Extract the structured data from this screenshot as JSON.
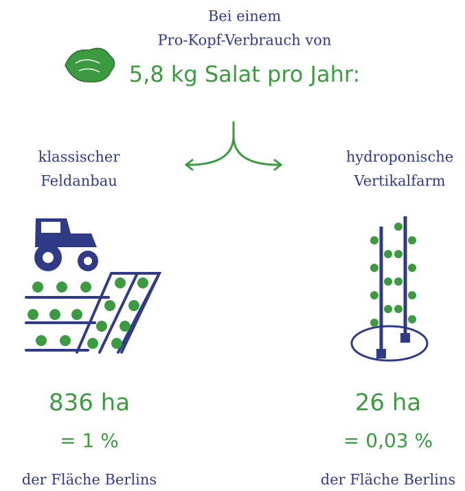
{
  "header": {
    "line1": "Bei einem",
    "line2": "Pro-Kopf-Verbrauch von",
    "highlight": "5,8 kg Salat pro Jahr:"
  },
  "left": {
    "label1": "klassischer",
    "label2": "Feldanbau",
    "area": "836 ha",
    "share": "= 1 %",
    "footer": "der Fläche Berlins"
  },
  "right": {
    "label1": "hydroponische",
    "label2": "Vertikalfarm",
    "area": "26 ha",
    "share": "= 0,03 %",
    "footer": "der Fläche Berlins"
  }
}
